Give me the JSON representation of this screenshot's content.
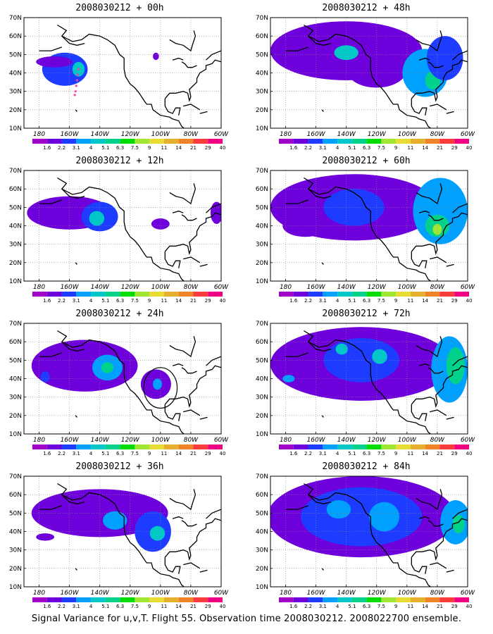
{
  "panels": [
    {
      "title": "2008030212 + 00h",
      "lead": "00h",
      "blobs": [
        {
          "lon": -163,
          "lat": 42,
          "rx": 15,
          "ry": 9,
          "level": 2
        },
        {
          "lon": -154,
          "lat": 42,
          "rx": 4,
          "ry": 4,
          "level": 4
        },
        {
          "lon": -103,
          "lat": 49,
          "rx": 2,
          "ry": 2,
          "level": 1
        },
        {
          "lon": -170,
          "lat": 46,
          "rx": 12,
          "ry": 3,
          "level": 1
        }
      ],
      "track": [
        [
          -154,
          42
        ],
        [
          -154.5,
          39
        ],
        [
          -155,
          36
        ],
        [
          -155.5,
          33
        ],
        [
          -156,
          30
        ],
        [
          -156.5,
          28
        ]
      ]
    },
    {
      "title": "2008030212 + 48h",
      "lead": "48h",
      "blobs": [
        {
          "lon": -140,
          "lat": 52,
          "rx": 50,
          "ry": 16,
          "level": 1
        },
        {
          "lon": -120,
          "lat": 42,
          "rx": 20,
          "ry": 10,
          "level": 1
        },
        {
          "lon": -88,
          "lat": 40,
          "rx": 15,
          "ry": 13,
          "level": 3
        },
        {
          "lon": -83,
          "lat": 36,
          "rx": 5,
          "ry": 5,
          "level": 5
        },
        {
          "lon": -140,
          "lat": 51,
          "rx": 8,
          "ry": 4,
          "level": 4
        },
        {
          "lon": -75,
          "lat": 48,
          "rx": 12,
          "ry": 12,
          "level": 2
        }
      ]
    },
    {
      "title": "2008030212 + 12h",
      "lead": "12h",
      "blobs": [
        {
          "lon": -160,
          "lat": 47,
          "rx": 28,
          "ry": 9,
          "level": 1
        },
        {
          "lon": -140,
          "lat": 45,
          "rx": 12,
          "ry": 8,
          "level": 2
        },
        {
          "lon": -142,
          "lat": 44,
          "rx": 5,
          "ry": 4,
          "level": 4
        },
        {
          "lon": -100,
          "lat": 41,
          "rx": 6,
          "ry": 3,
          "level": 1
        },
        {
          "lon": -63,
          "lat": 47,
          "rx": 4,
          "ry": 6,
          "level": 1
        }
      ]
    },
    {
      "title": "2008030212 + 60h",
      "lead": "60h",
      "blobs": [
        {
          "lon": -135,
          "lat": 50,
          "rx": 55,
          "ry": 18,
          "level": 1
        },
        {
          "lon": -135,
          "lat": 50,
          "rx": 20,
          "ry": 10,
          "level": 2
        },
        {
          "lon": -78,
          "lat": 48,
          "rx": 18,
          "ry": 18,
          "level": 3
        },
        {
          "lon": -80,
          "lat": 40,
          "rx": 8,
          "ry": 6,
          "level": 5
        },
        {
          "lon": -80,
          "lat": 38,
          "rx": 3,
          "ry": 3,
          "level": 7
        },
        {
          "lon": -167,
          "lat": 40,
          "rx": 15,
          "ry": 6,
          "level": 1
        }
      ]
    },
    {
      "title": "2008030212 + 24h",
      "lead": "24h",
      "blobs": [
        {
          "lon": -150,
          "lat": 47,
          "rx": 35,
          "ry": 14,
          "level": 1
        },
        {
          "lon": -135,
          "lat": 46,
          "rx": 10,
          "ry": 7,
          "level": 3
        },
        {
          "lon": -135,
          "lat": 46,
          "rx": 4,
          "ry": 3,
          "level": 5
        },
        {
          "lon": -103,
          "lat": 37,
          "rx": 10,
          "ry": 8,
          "level": 1
        },
        {
          "lon": -102,
          "lat": 37,
          "rx": 3,
          "ry": 3,
          "level": 3
        },
        {
          "lon": -176,
          "lat": 41,
          "rx": 3,
          "ry": 3,
          "level": 2
        }
      ],
      "circle": {
        "lon": -100,
        "lat": 35,
        "r": 11
      }
    },
    {
      "title": "2008030212 + 72h",
      "lead": "72h",
      "blobs": [
        {
          "lon": -130,
          "lat": 48,
          "rx": 60,
          "ry": 20,
          "level": 1
        },
        {
          "lon": -130,
          "lat": 50,
          "rx": 25,
          "ry": 12,
          "level": 2
        },
        {
          "lon": -118,
          "lat": 52,
          "rx": 5,
          "ry": 4,
          "level": 4
        },
        {
          "lon": -143,
          "lat": 56,
          "rx": 4,
          "ry": 3,
          "level": 4
        },
        {
          "lon": -72,
          "lat": 45,
          "rx": 12,
          "ry": 18,
          "level": 3
        },
        {
          "lon": -68,
          "lat": 47,
          "rx": 6,
          "ry": 10,
          "level": 5
        },
        {
          "lon": -178,
          "lat": 40,
          "rx": 4,
          "ry": 2,
          "level": 3
        }
      ]
    },
    {
      "title": "2008030212 + 36h",
      "lead": "36h",
      "blobs": [
        {
          "lon": -140,
          "lat": 50,
          "rx": 45,
          "ry": 13,
          "level": 1
        },
        {
          "lon": -130,
          "lat": 46,
          "rx": 8,
          "ry": 5,
          "level": 3
        },
        {
          "lon": -105,
          "lat": 40,
          "rx": 12,
          "ry": 11,
          "level": 2
        },
        {
          "lon": -102,
          "lat": 39,
          "rx": 5,
          "ry": 4,
          "level": 4
        },
        {
          "lon": -176,
          "lat": 37,
          "rx": 6,
          "ry": 2,
          "level": 1
        }
      ]
    },
    {
      "title": "2008030212 + 84h",
      "lead": "84h",
      "blobs": [
        {
          "lon": -130,
          "lat": 48,
          "rx": 62,
          "ry": 22,
          "level": 1
        },
        {
          "lon": -130,
          "lat": 48,
          "rx": 40,
          "ry": 16,
          "level": 2
        },
        {
          "lon": -115,
          "lat": 48,
          "rx": 10,
          "ry": 8,
          "level": 3
        },
        {
          "lon": -145,
          "lat": 52,
          "rx": 8,
          "ry": 5,
          "level": 3
        },
        {
          "lon": -68,
          "lat": 45,
          "rx": 10,
          "ry": 12,
          "level": 3
        },
        {
          "lon": -66,
          "lat": 44,
          "rx": 4,
          "ry": 5,
          "level": 5
        }
      ]
    }
  ],
  "lat_labels": [
    "70N",
    "60N",
    "50N",
    "40N",
    "30N",
    "20N",
    "10N"
  ],
  "lon_labels": [
    "180",
    "160W",
    "140W",
    "120W",
    "100W",
    "80W",
    "60W"
  ],
  "legend": {
    "levels": [
      "1.6",
      "2.2",
      "3.1",
      "4",
      "5.1",
      "6.3",
      "7.5",
      "9",
      "11",
      "14",
      "21",
      "29",
      "40"
    ],
    "colors": [
      "#a000c8",
      "#6e00dc",
      "#1e3cff",
      "#00a0ff",
      "#00c8c8",
      "#00d28c",
      "#00dc00",
      "#a0e632",
      "#e6dc32",
      "#e6af2d",
      "#f08228",
      "#fa3c3c",
      "#f00082"
    ]
  },
  "background_color": "#a000c8",
  "track_color": "#ff3ca0",
  "caption": "Signal Variance for u,v,T. Flight 55. Observation time 2008030212. 2008022700 ensemble."
}
